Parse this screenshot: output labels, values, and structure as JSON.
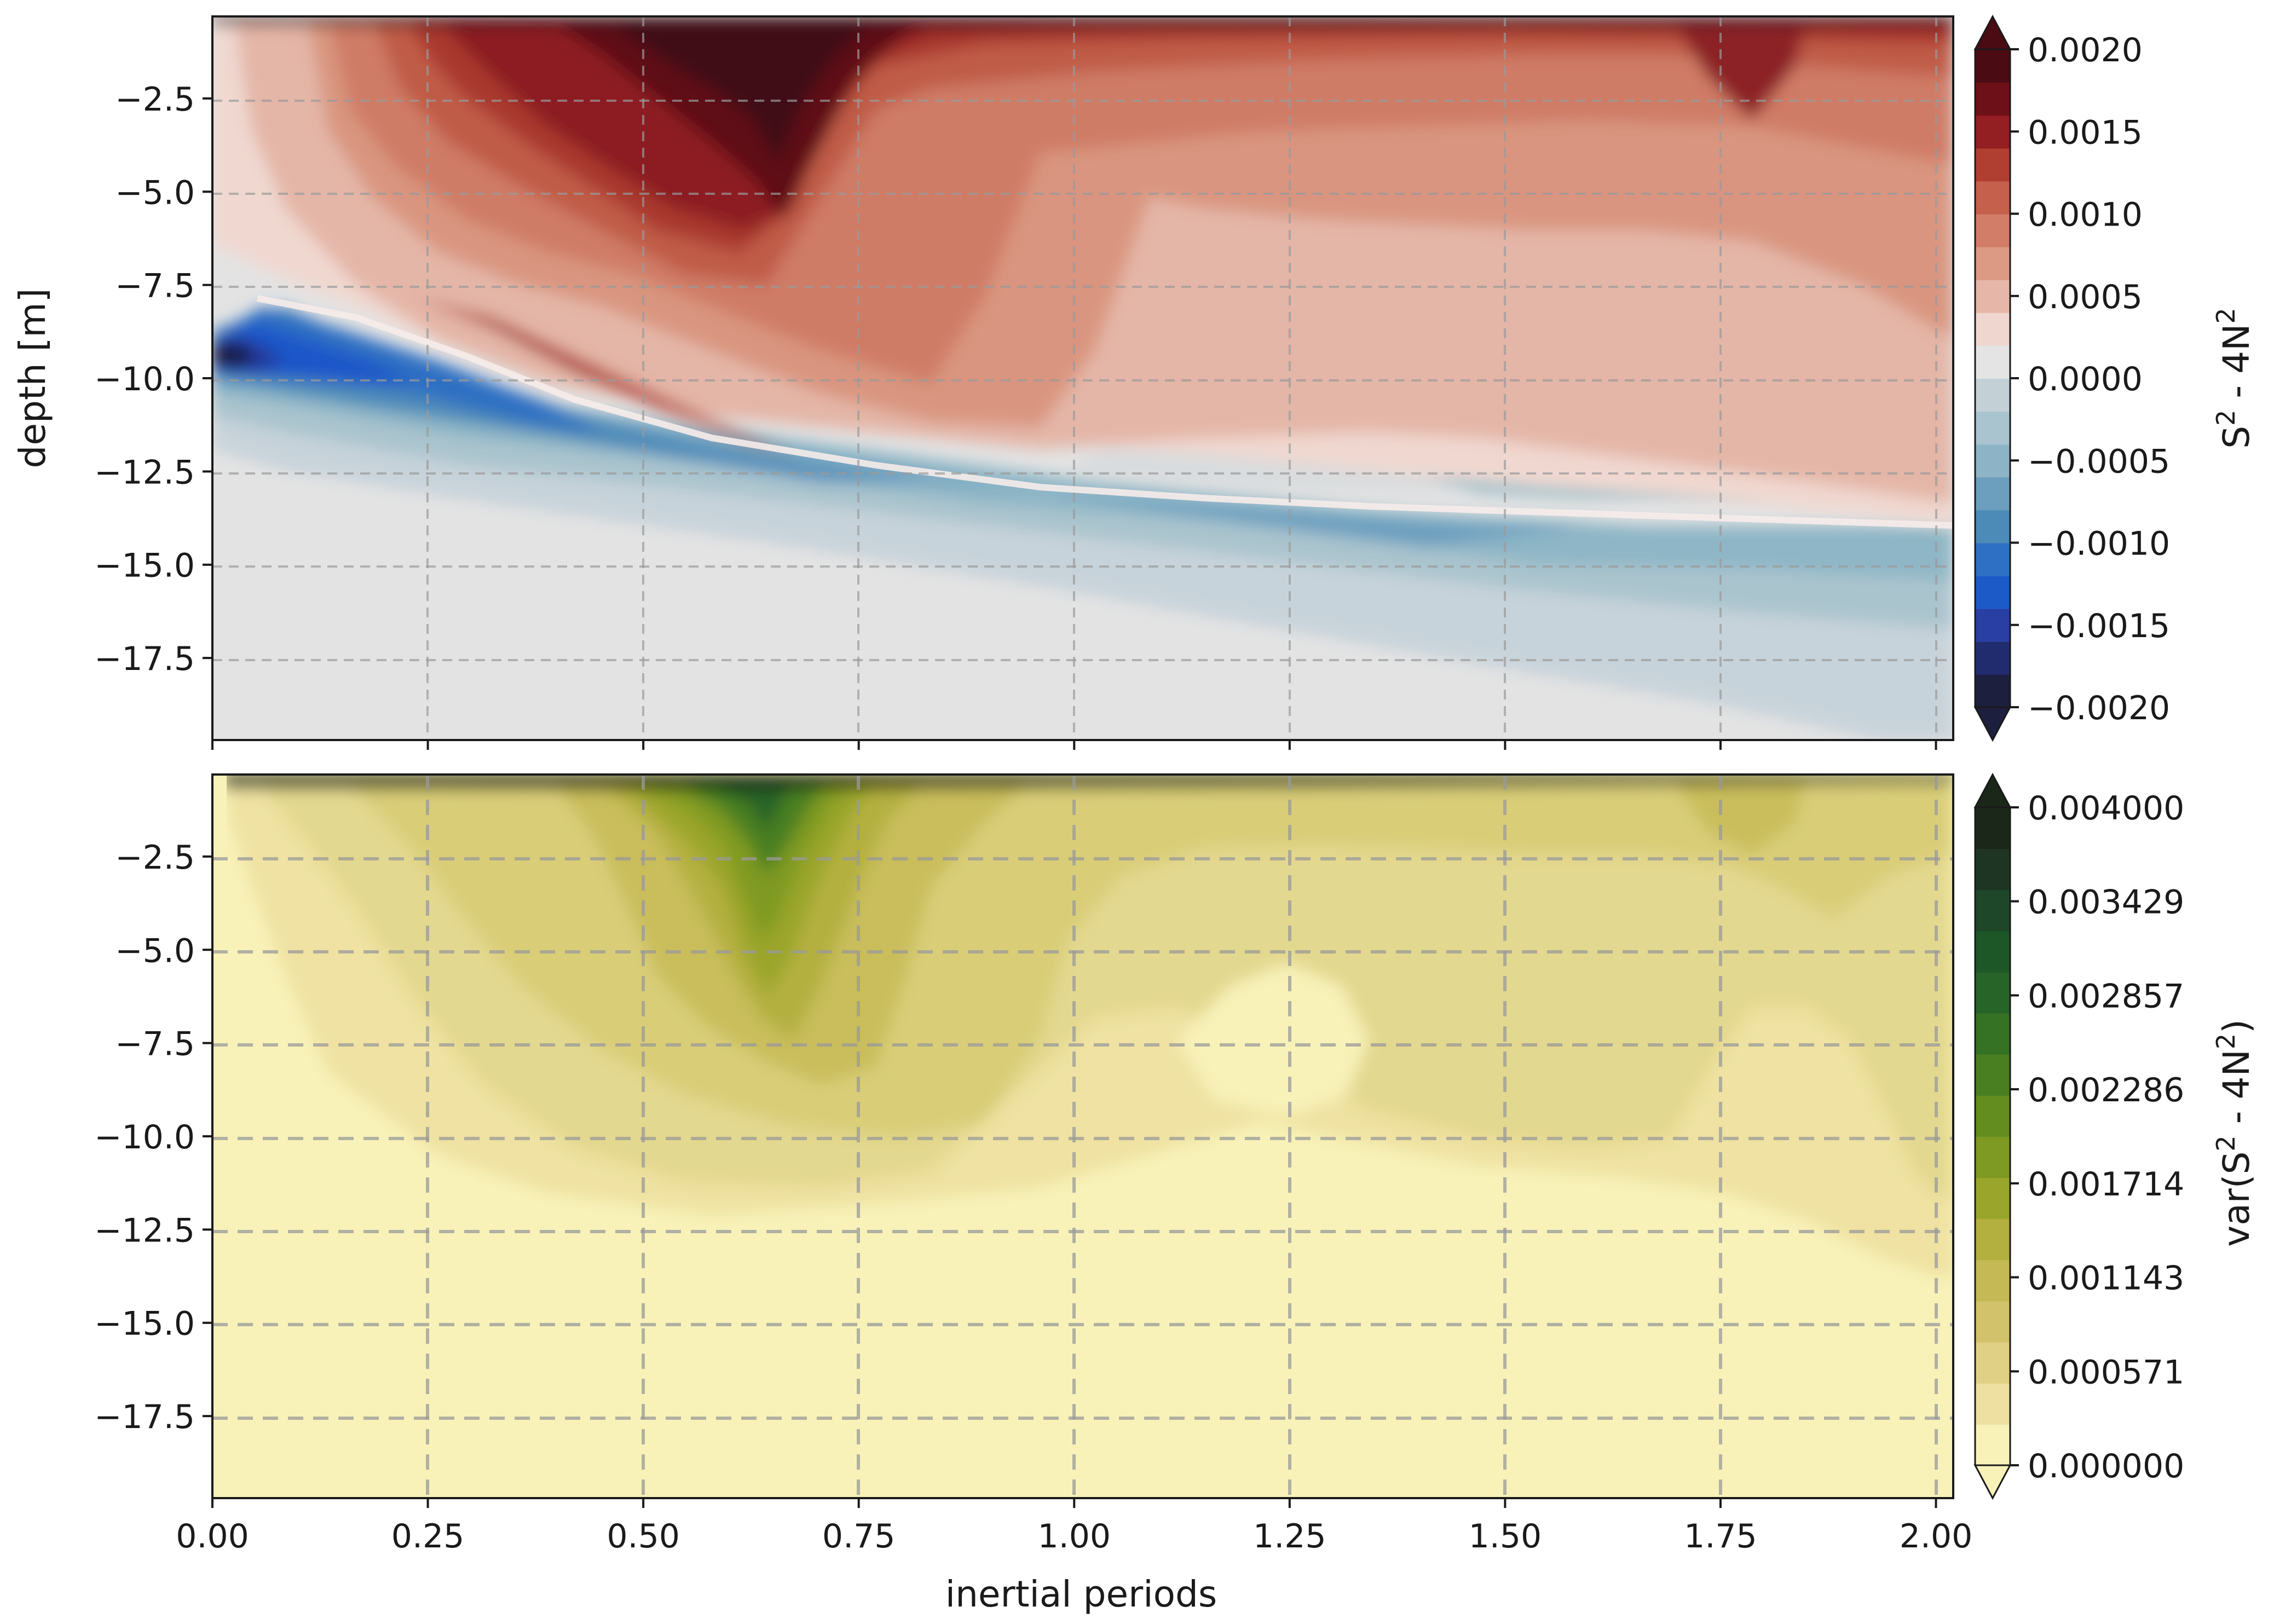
{
  "chart_data": [
    {
      "type": "heatmap",
      "title": "",
      "xlabel": "",
      "ylabel": "depth [m]",
      "xlim": [
        0.0,
        2.02
      ],
      "ylim": [
        -19.7,
        -0.3
      ],
      "grid": true,
      "xticks": [
        0.0,
        0.25,
        0.5,
        0.75,
        1.0,
        1.25,
        1.5,
        1.75,
        2.0
      ],
      "xtick_labels": [],
      "yticks": [
        -2.5,
        -5.0,
        -7.5,
        -10.0,
        -12.5,
        -15.0,
        -17.5
      ],
      "ytick_labels": [
        "−2.5",
        "−5.0",
        "−7.5",
        "−10.0",
        "−12.5",
        "−15.0",
        "−17.5"
      ],
      "colorbar": {
        "label_main": "S",
        "label_sup1": "2",
        "label_mid": " - 4N",
        "label_sup2": "2",
        "label_end": "",
        "extend": "both",
        "colormap": "diverging blue-white-red",
        "tick_values": [
          0.002,
          0.0015,
          0.001,
          0.0005,
          0.0,
          -0.0005,
          -0.001,
          -0.0015,
          -0.002
        ],
        "tick_labels": [
          "0.0020",
          "0.0015",
          "0.0010",
          "0.0005",
          "0.0000",
          "−0.0005",
          "−0.0010",
          "−0.0015",
          "−0.0020"
        ],
        "range": [
          -0.002,
          0.002
        ],
        "colors": [
          "#1c1f3e",
          "#212c6e",
          "#2a3fa3",
          "#1c5ac8",
          "#2e71c4",
          "#4c8ab8",
          "#6b9fbd",
          "#8db4c6",
          "#a9c4ce",
          "#c3d1d6",
          "#e4e4e4",
          "#efd7cf",
          "#e6b7a8",
          "#dc9a85",
          "#d27d68",
          "#c4604c",
          "#b03e31",
          "#931f22",
          "#6d1018",
          "#4a0b13"
        ]
      },
      "fields": {
        "description": "S2 - 4N2 versus time (inertial periods) and depth",
        "surface_layer_top_m": -0.3,
        "maximum_positive_x_range": [
          0.45,
          0.65
        ],
        "maximum_positive_value": 0.002,
        "negative_core_depth_m": -10.0,
        "negative_core_x": 0.05,
        "negative_core_value": -0.002,
        "zero_crossing_depth_at_x0": -9.0,
        "zero_crossing_depth_at_x2": -13.8
      }
    },
    {
      "type": "heatmap",
      "title": "",
      "xlabel": "inertial periods",
      "ylabel": "",
      "xlim": [
        0.0,
        2.02
      ],
      "ylim": [
        -19.7,
        -0.3
      ],
      "grid": true,
      "xticks": [
        0.0,
        0.25,
        0.5,
        0.75,
        1.0,
        1.25,
        1.5,
        1.75,
        2.0
      ],
      "xtick_labels": [
        "0.00",
        "0.25",
        "0.50",
        "0.75",
        "1.00",
        "1.25",
        "1.50",
        "1.75",
        "2.00"
      ],
      "yticks": [
        -2.5,
        -5.0,
        -7.5,
        -10.0,
        -12.5,
        -15.0,
        -17.5
      ],
      "ytick_labels": [
        "−2.5",
        "−5.0",
        "−7.5",
        "−10.0",
        "−12.5",
        "−15.0",
        "−17.5"
      ],
      "colorbar": {
        "label_main": "var(S",
        "label_sup1": "2",
        "label_mid": " - 4N",
        "label_sup2": "2",
        "label_end": ")",
        "extend": "both",
        "colormap": "sequential yellow-green",
        "tick_values": [
          0.004,
          0.003429,
          0.002857,
          0.002286,
          0.001714,
          0.001143,
          0.000571,
          0.0
        ],
        "tick_labels": [
          "0.004000",
          "0.003429",
          "0.002857",
          "0.002286",
          "0.001714",
          "0.001143",
          "0.000571",
          "0.000000"
        ],
        "range": [
          0.0,
          0.004
        ],
        "colors": [
          "#f8f2b9",
          "#ede0a0",
          "#dfd086",
          "#d2c26c",
          "#c5b955",
          "#b3b03f",
          "#9aa52c",
          "#7f9a22",
          "#638d1e",
          "#4a7f21",
          "#357224",
          "#276428",
          "#1d5627",
          "#1e4628",
          "#1f3524",
          "#1a2719"
        ]
      },
      "fields": {
        "description": "variance of S2 - 4N2 versus time and depth",
        "maximum_x_range": [
          0.5,
          0.62
        ],
        "maximum_depth_range_m": [
          -1.0,
          -7.5
        ],
        "maximum_value": 0.0025,
        "background_value": 0.0
      }
    }
  ]
}
